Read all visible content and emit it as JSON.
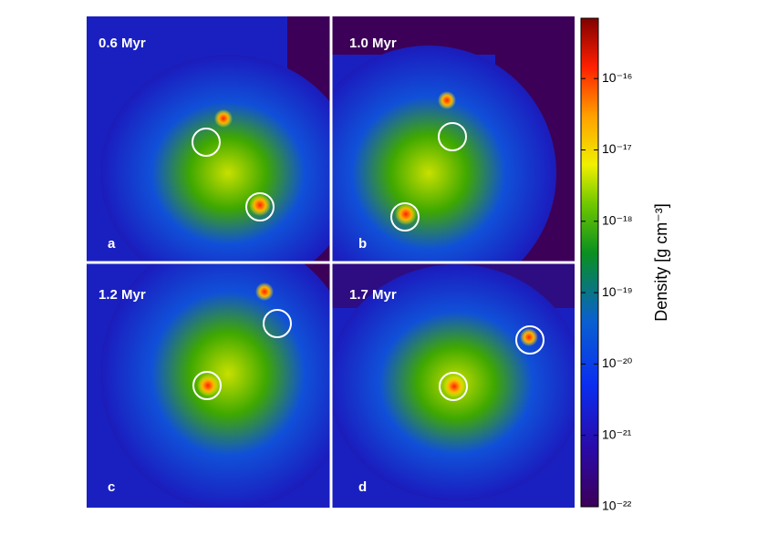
{
  "panels": [
    {
      "time": "0.6 Myr",
      "letter": "a"
    },
    {
      "time": "1.0 Myr",
      "letter": "b"
    },
    {
      "time": "1.2 Myr",
      "letter": "c"
    },
    {
      "time": "1.7 Myr",
      "letter": "d"
    }
  ],
  "colorbar": {
    "label": "Density [g cm⁻³]",
    "scale": "log",
    "lim": [
      1e-22,
      7e-16
    ],
    "ticks": [
      {
        "value": 1e-22,
        "label": "10⁻²²"
      },
      {
        "value": 1e-21,
        "label": "10⁻²¹"
      },
      {
        "value": 1e-20,
        "label": "10⁻²⁰"
      },
      {
        "value": 1e-19,
        "label": "10⁻¹⁹"
      },
      {
        "value": 1e-18,
        "label": "10⁻¹⁸"
      },
      {
        "value": 1e-17,
        "label": "10⁻¹⁷"
      },
      {
        "value": 1e-16,
        "label": "10⁻¹⁶"
      }
    ]
  }
}
